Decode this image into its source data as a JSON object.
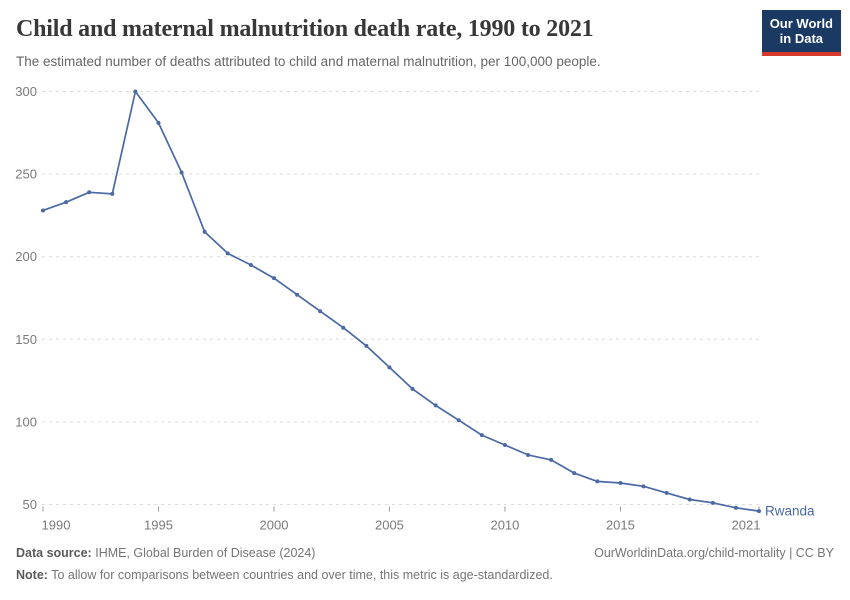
{
  "logo": {
    "line1": "Our World",
    "line2": "in Data"
  },
  "colors": {
    "accent_line": "#4a69a5",
    "grid": "#dcdcdc",
    "tick": "#9a9a9a",
    "tick_text": "#7a7a7a",
    "logo_bg": "#1a3a63",
    "logo_stripe": "#d6382c"
  },
  "chart_data": {
    "type": "line",
    "title": "Child and maternal malnutrition death rate, 1990 to 2021",
    "subtitle": "The estimated number of deaths attributed to child and maternal malnutrition, per 100,000 people.",
    "x_range": [
      1990,
      2021
    ],
    "x": [
      1990,
      1991,
      1992,
      1993,
      1994,
      1995,
      1996,
      1997,
      1998,
      1999,
      2000,
      2001,
      2002,
      2003,
      2004,
      2005,
      2006,
      2007,
      2008,
      2009,
      2010,
      2011,
      2012,
      2013,
      2014,
      2015,
      2016,
      2017,
      2018,
      2019,
      2020,
      2021
    ],
    "series": [
      {
        "name": "Rwanda",
        "values": [
          228,
          233,
          239,
          238,
          300,
          281,
          251,
          215,
          202,
          195,
          187,
          177,
          167,
          157,
          146,
          133,
          120,
          110,
          101,
          92,
          86,
          80,
          77,
          69,
          64,
          63,
          61,
          57,
          53,
          51,
          48,
          46
        ]
      }
    ],
    "x_ticks": [
      1990,
      1995,
      2000,
      2005,
      2010,
      2015,
      2021
    ],
    "y_ticks": [
      50,
      100,
      150,
      200,
      250,
      300
    ],
    "ylim": [
      50,
      300
    ],
    "grid": "horizontal-dashed",
    "legend": "end-of-line-label"
  },
  "footer": {
    "source_label": "Data source:",
    "source_text": "IHME, Global Burden of Disease (2024)",
    "credit": "OurWorldinData.org/child-mortality | CC BY",
    "note_label": "Note:",
    "note_text": "To allow for comparisons between countries and over time, this metric is age-standardized."
  }
}
